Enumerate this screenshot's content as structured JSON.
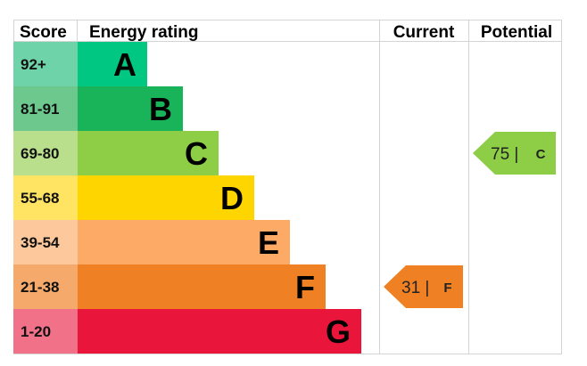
{
  "headers": {
    "score": "Score",
    "energy_rating": "Energy rating",
    "current": "Current",
    "potential": "Potential"
  },
  "chart_data": {
    "type": "bar",
    "bands": [
      {
        "letter": "A",
        "range": "92+",
        "color": "#00c781",
        "score_color": "#6fd3a9"
      },
      {
        "letter": "B",
        "range": "81-91",
        "color": "#19b459",
        "score_color": "#6cc88d"
      },
      {
        "letter": "C",
        "range": "69-80",
        "color": "#8dce46",
        "score_color": "#b9df8d"
      },
      {
        "letter": "D",
        "range": "55-68",
        "color": "#ffd500",
        "score_color": "#ffe464"
      },
      {
        "letter": "E",
        "range": "39-54",
        "color": "#fcaa65",
        "score_color": "#fdc89b"
      },
      {
        "letter": "F",
        "range": "21-38",
        "color": "#ef8023",
        "score_color": "#f5aa6c"
      },
      {
        "letter": "G",
        "range": "1-20",
        "color": "#e9153b",
        "score_color": "#f17189"
      }
    ],
    "current": {
      "value": 31,
      "value_text": "31 |",
      "band": "F",
      "color": "#ef8023"
    },
    "potential": {
      "value": 75,
      "value_text": "75 |",
      "band": "C",
      "color": "#8dce46"
    }
  }
}
